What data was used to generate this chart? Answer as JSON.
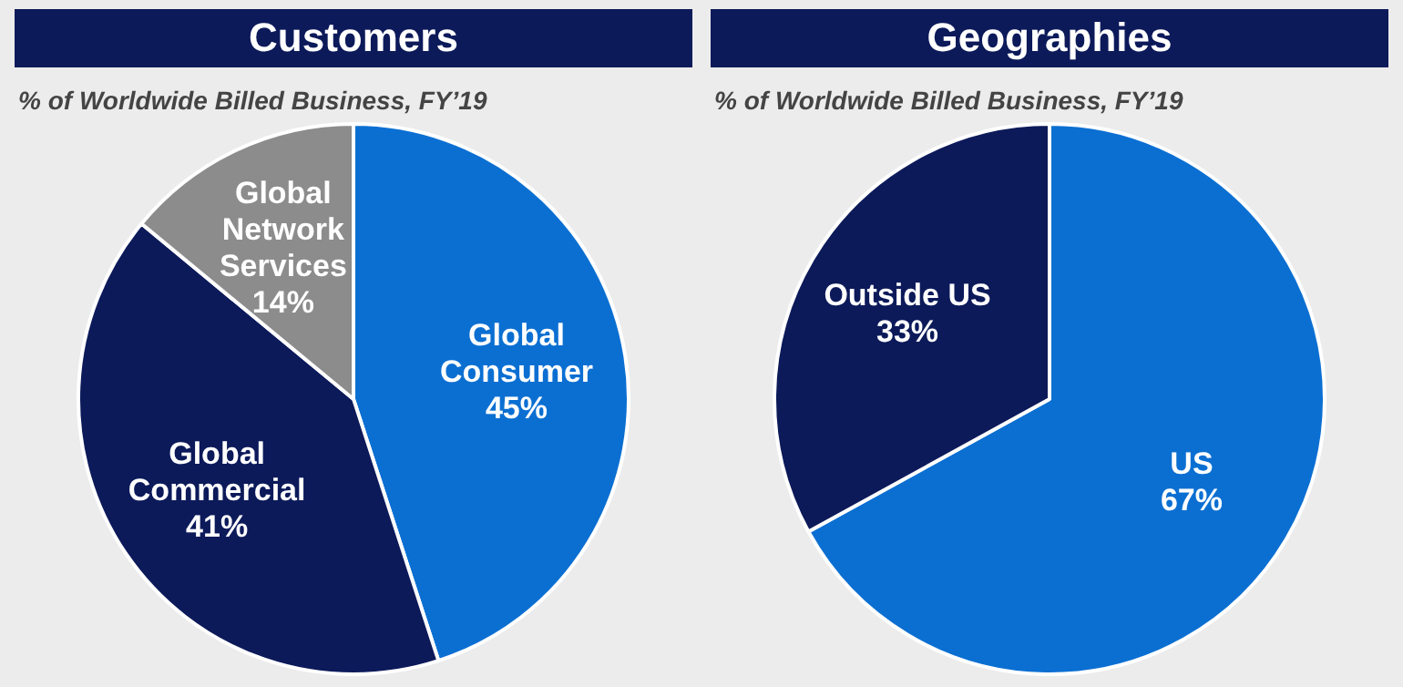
{
  "chart_data": [
    {
      "type": "pie",
      "title": "Customers",
      "subtitle": "% of Worldwide Billed Business, FY’19",
      "categories": [
        "Global Consumer",
        "Global Commercial",
        "Global Network Services"
      ],
      "values": [
        45,
        41,
        14
      ],
      "value_labels": [
        "45%",
        "41%",
        "14%"
      ],
      "colors": [
        "#0b6fd2",
        "#0c1a5a",
        "#8c8c8c"
      ],
      "legend": false
    },
    {
      "type": "pie",
      "title": "Geographies",
      "subtitle": "% of Worldwide Billed Business, FY’19",
      "categories": [
        "US",
        "Outside US"
      ],
      "values": [
        67,
        33
      ],
      "value_labels": [
        "67%",
        "33%"
      ],
      "colors": [
        "#0b6fd2",
        "#0c1a5a"
      ],
      "legend": false
    }
  ]
}
